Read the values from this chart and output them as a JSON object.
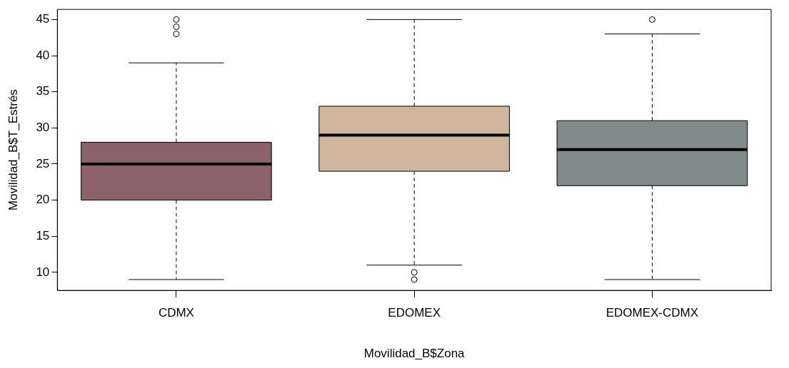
{
  "chart_data": {
    "type": "box",
    "xlabel": "Movilidad_B$Zona",
    "ylabel": "Movilidad_B$T_Estrés",
    "categories": [
      "CDMX",
      "EDOMEX",
      "EDOMEX-CDMX"
    ],
    "colors": [
      "#8b626a",
      "#cfb59b",
      "#808a88"
    ],
    "boxes": [
      {
        "low": 9,
        "q1": 20,
        "median": 25,
        "q3": 28,
        "high": 39,
        "outliers": [
          43,
          44,
          45
        ]
      },
      {
        "low": 11,
        "q1": 24,
        "median": 29,
        "q3": 33,
        "high": 45,
        "outliers": [
          10,
          9
        ]
      },
      {
        "low": 9,
        "q1": 22,
        "median": 27,
        "q3": 31,
        "high": 43,
        "outliers": [
          45
        ]
      }
    ],
    "ylim": [
      7.5,
      46.4
    ],
    "yticks": [
      10,
      15,
      20,
      25,
      30,
      35,
      40,
      45
    ],
    "grid": false,
    "legend": false
  }
}
